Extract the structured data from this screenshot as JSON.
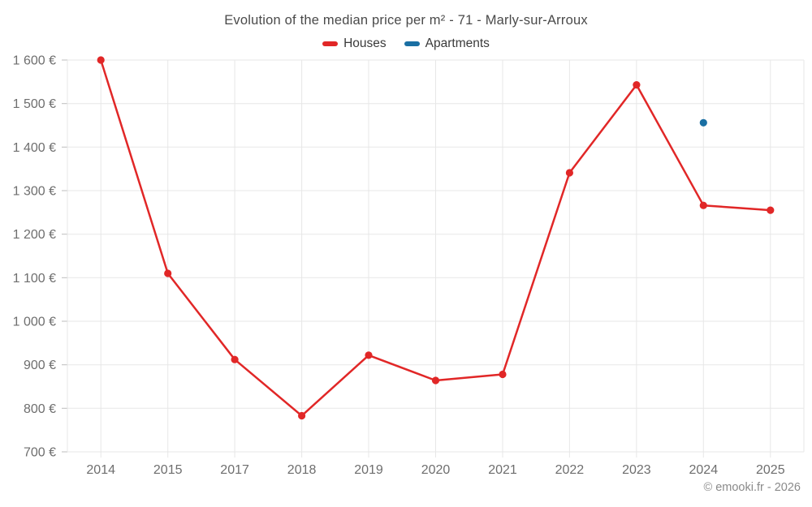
{
  "title": "Evolution of the median price per m² - 71 - Marly-sur-Arroux",
  "legend": [
    {
      "label": "Houses",
      "color": "#e12727"
    },
    {
      "label": "Apartments",
      "color": "#1a6fa3"
    }
  ],
  "watermark": "© emooki.fr - 2026",
  "colors": {
    "houses": "#e12727",
    "apartments": "#1a6fa3",
    "gridline": "#e7e7e7",
    "tick": "#bdbdbd",
    "axis_label": "#6e6e6e"
  },
  "chart_data": {
    "type": "line",
    "title": "Evolution of the median price per m² - 71 - Marly-sur-Arroux",
    "x": [
      "2014",
      "2015",
      "2017",
      "2018",
      "2019",
      "2020",
      "2021",
      "2022",
      "2023",
      "2024",
      "2025"
    ],
    "series": [
      {
        "name": "Houses",
        "color": "#e12727",
        "style": "line-with-markers",
        "values": [
          1600,
          1110,
          912,
          783,
          922,
          864,
          878,
          1341,
          1543,
          1266,
          1255
        ]
      },
      {
        "name": "Apartments",
        "color": "#1a6fa3",
        "style": "markers-only",
        "values": [
          null,
          null,
          null,
          null,
          null,
          null,
          null,
          null,
          null,
          1456,
          null
        ]
      }
    ],
    "ylim": [
      700,
      1600
    ],
    "yticks": [
      {
        "value": 700,
        "label": "700 €"
      },
      {
        "value": 800,
        "label": "800 €"
      },
      {
        "value": 900,
        "label": "900 €"
      },
      {
        "value": 1000,
        "label": "1 000 €"
      },
      {
        "value": 1100,
        "label": "1 100 €"
      },
      {
        "value": 1200,
        "label": "1 200 €"
      },
      {
        "value": 1300,
        "label": "1 300 €"
      },
      {
        "value": 1400,
        "label": "1 400 €"
      },
      {
        "value": 1500,
        "label": "1 500 €"
      },
      {
        "value": 1600,
        "label": "1 600 €"
      }
    ],
    "xlabel": "",
    "ylabel": "",
    "grid": true,
    "legend_position": "top"
  }
}
